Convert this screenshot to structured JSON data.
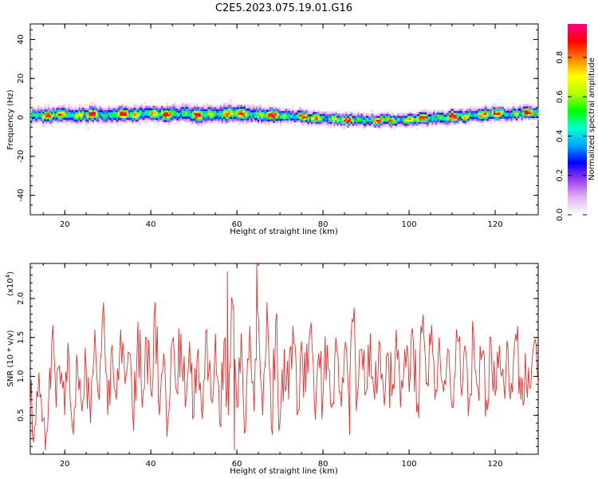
{
  "figure": {
    "title": "C2E5.2023.075.19.01.G16"
  },
  "chart_data": [
    {
      "type": "heatmap",
      "title": "C2E5.2023.075.19.01.G16",
      "xlabel": "Height of straight line (km)",
      "ylabel": "Frequency (Hz)",
      "xlim": [
        12,
        130
      ],
      "ylim": [
        -50,
        48
      ],
      "x_ticks": [
        20,
        40,
        60,
        80,
        100,
        120
      ],
      "y_ticks": [
        -40,
        -20,
        0,
        20,
        40
      ],
      "grid": false,
      "colorbar": {
        "label": "Normalized spectral amplitude",
        "range": [
          0,
          0.97
        ],
        "ticks": [
          0.0,
          0.2,
          0.4,
          0.6,
          0.8
        ],
        "colors": [
          "#ffffff",
          "#e2b4f2",
          "#9a3ff0",
          "#0000ff",
          "#00a6ff",
          "#00ffd0",
          "#00ff00",
          "#b8ff00",
          "#ffff00",
          "#ff7f00",
          "#ff0000",
          "#ff0088"
        ]
      },
      "ridge": {
        "x": [
          12,
          20,
          30,
          40,
          50,
          60,
          70,
          80,
          90,
          100,
          110,
          120,
          130
        ],
        "frequency_center": [
          0.5,
          0.8,
          1.2,
          1.5,
          1.5,
          1.5,
          0.5,
          -1.0,
          -2.0,
          -1.5,
          0.0,
          1.5,
          2.0
        ],
        "frequency_halfwidth": [
          4.5,
          5.0,
          5.0,
          5.0,
          5.5,
          5.5,
          4.5,
          4.0,
          4.0,
          4.0,
          4.5,
          4.5,
          4.0
        ],
        "peak_amplitude": 0.95
      }
    },
    {
      "type": "line",
      "xlabel": "Height of straight line (km)",
      "ylabel": "SNR (10 * v/v)",
      "y_multiplier_label": "(x10",
      "y_multiplier_exp": "4",
      "y_multiplier_close": ")",
      "xlim": [
        12,
        130
      ],
      "ylim": [
        0.0,
        2.45
      ],
      "x_ticks": [
        20,
        40,
        60,
        80,
        100,
        120
      ],
      "y_ticks": [
        0.5,
        1.0,
        1.5,
        2.0
      ],
      "grid": false,
      "series": [
        {
          "color": "#e8302c",
          "x": [
            12,
            13,
            14,
            15,
            16,
            17,
            18,
            19,
            20,
            21,
            22,
            23,
            24,
            25,
            26,
            27,
            28,
            29,
            30,
            31,
            32,
            33,
            34,
            35,
            36,
            37,
            38,
            39,
            40,
            41,
            42,
            43,
            44,
            45,
            46,
            47,
            48,
            49,
            50,
            51,
            52,
            53,
            54,
            55,
            56,
            57,
            58,
            59,
            60,
            61,
            62,
            63,
            64,
            65,
            66,
            67,
            68,
            69,
            70,
            71,
            72,
            73,
            74,
            75,
            76,
            77,
            78,
            79,
            80,
            81,
            82,
            83,
            84,
            85,
            86,
            87,
            88,
            89,
            90,
            91,
            92,
            93,
            94,
            95,
            96,
            97,
            98,
            99,
            100,
            101,
            102,
            103,
            104,
            105,
            106,
            107,
            108,
            109,
            110,
            111,
            112,
            113,
            114,
            115,
            116,
            117,
            118,
            119,
            120,
            121,
            122,
            123,
            124,
            125,
            126,
            127,
            128,
            129,
            130
          ],
          "y": [
            0.6,
            0.35,
            1.05,
            0.45,
            0.3,
            1.45,
            0.6,
            0.9,
            0.5,
            1.2,
            0.25,
            1.1,
            0.55,
            1.05,
            0.4,
            1.6,
            0.7,
            1.95,
            0.5,
            1.4,
            0.7,
            1.6,
            0.9,
            1.3,
            0.3,
            1.7,
            0.6,
            1.5,
            0.8,
            1.95,
            0.5,
            1.3,
            0.45,
            1.45,
            0.8,
            1.55,
            0.6,
            1.45,
            0.5,
            1.35,
            0.45,
            1.6,
            0.7,
            1.55,
            0.4,
            1.45,
            0.5,
            1.95,
            0.6,
            1.55,
            0.3,
            1.65,
            0.55,
            1.75,
            0.5,
            1.95,
            0.35,
            1.7,
            0.4,
            1.35,
            0.7,
            1.65,
            0.5,
            1.45,
            0.8,
            1.6,
            0.65,
            1.3,
            0.75,
            1.4,
            0.6,
            1.5,
            0.8,
            1.35,
            0.7,
            1.7,
            0.75,
            1.35,
            0.8,
            1.55,
            0.7,
            1.45,
            0.85,
            1.3,
            0.75,
            1.6,
            0.6,
            1.35,
            0.8,
            1.45,
            0.65,
            1.55,
            0.9,
            1.4,
            0.7,
            1.5,
            0.8,
            1.35,
            0.6,
            1.6,
            0.9,
            1.4,
            0.7,
            1.55,
            0.85,
            1.3,
            0.7,
            1.5,
            0.75,
            1.4,
            0.9,
            1.35,
            0.8,
            1.45,
            0.7,
            1.3,
            0.85,
            1.4,
            0.9
          ],
          "spikes": [
            {
              "x": 57.8,
              "y": 2.35
            },
            {
              "x": 59.4,
              "y": 0.05
            },
            {
              "x": 64.6,
              "y": 2.45
            },
            {
              "x": 86.2,
              "y": 0.25
            }
          ]
        }
      ]
    }
  ]
}
